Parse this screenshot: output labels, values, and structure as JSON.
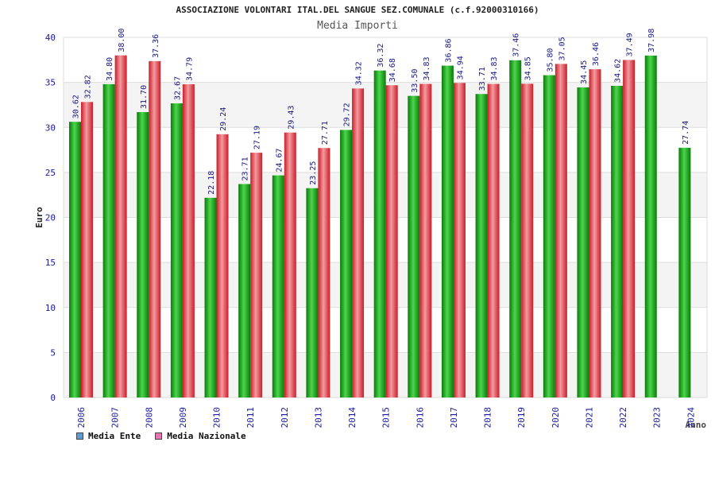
{
  "title": "ASSOCIAZIONE VOLONTARI ITAL.DEL SANGUE SEZ.COMUNALE (c.f.92000310166)",
  "subtitle": "Media Importi",
  "legend": [
    {
      "label": "Media Ente",
      "color": "#5b9bd5"
    },
    {
      "label": "Media Nazionale",
      "color": "#e377b1"
    }
  ],
  "chart_data": {
    "type": "bar",
    "ylabel": "Euro",
    "xlabel": "Anno",
    "ylim": [
      0,
      40
    ],
    "yticks": [
      0,
      5,
      10,
      15,
      20,
      25,
      30,
      35,
      40
    ],
    "grid": true,
    "categories": [
      "2006",
      "2007",
      "2008",
      "2009",
      "2010",
      "2011",
      "2012",
      "2013",
      "2014",
      "2015",
      "2016",
      "2017",
      "2018",
      "2019",
      "2020",
      "2021",
      "2022",
      "2023",
      "2024"
    ],
    "series": [
      {
        "name": "Media Ente",
        "color": "#1aa51a",
        "values": [
          30.62,
          34.8,
          31.7,
          32.67,
          22.18,
          23.71,
          24.67,
          23.25,
          29.72,
          36.32,
          33.5,
          36.86,
          33.71,
          37.46,
          35.8,
          34.45,
          34.62,
          37.98,
          27.74
        ],
        "labels": [
          "30.62",
          "34.80",
          "31.70",
          "32.67",
          "22.18",
          "23.71",
          "24.67",
          "23.25",
          "29.72",
          "36.32",
          "33.50",
          "36.86",
          "33.71",
          "37.46",
          "35.80",
          "34.45",
          "34.62",
          "37.98",
          "27.74"
        ]
      },
      {
        "name": "Media Nazionale",
        "color": "#e0303a",
        "values": [
          32.82,
          38.0,
          37.36,
          34.79,
          29.24,
          27.19,
          29.43,
          27.71,
          34.32,
          34.68,
          34.83,
          34.94,
          34.83,
          34.85,
          37.05,
          36.46,
          37.49,
          null,
          null
        ],
        "labels": [
          "32.82",
          "38.00",
          "37.36",
          "34.79",
          "29.24",
          "27.19",
          "29.43",
          "27.71",
          "34.32",
          "34.68",
          "34.83",
          "34.94",
          "34.83",
          "34.85",
          "37.05",
          "36.46",
          "37.49",
          null,
          null
        ]
      }
    ]
  }
}
